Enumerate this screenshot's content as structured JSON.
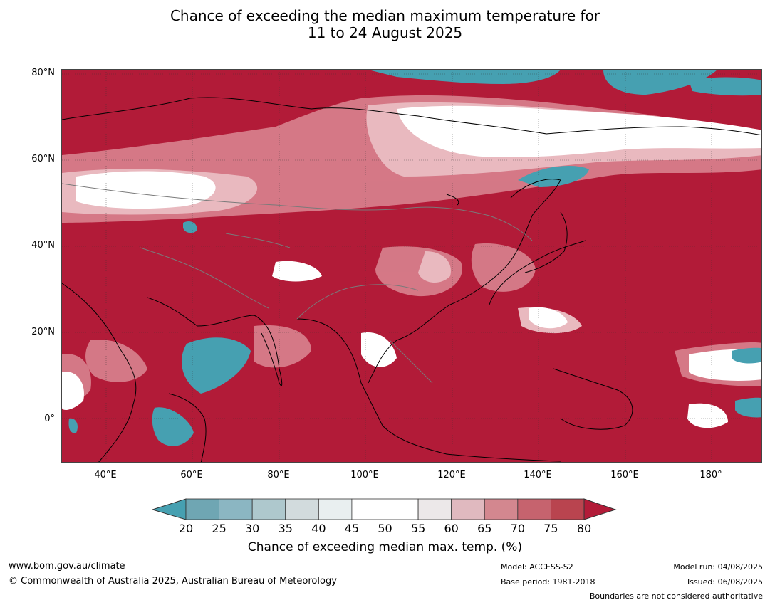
{
  "header": {
    "title_line1": "Chance of exceeding the median maximum temperature for",
    "title_line2": "11 to 24 August 2025"
  },
  "map": {
    "lat_labels": [
      "80°N",
      "60°N",
      "40°N",
      "20°N",
      "0°"
    ],
    "lon_labels": [
      "40°E",
      "60°E",
      "80°E",
      "100°E",
      "120°E",
      "140°E",
      "160°E",
      "180°"
    ],
    "colors": {
      "background_high": "#b21b38",
      "low": "#46a0b1",
      "near_median": "#ffffff",
      "mid_high": "#d8838f",
      "light_pink": "#e9b9bf",
      "coast": "#000000",
      "borders": "#7a7a7a"
    }
  },
  "colorbar": {
    "ticks": [
      "20",
      "25",
      "30",
      "35",
      "40",
      "45",
      "50",
      "55",
      "60",
      "65",
      "70",
      "75",
      "80"
    ],
    "colors": [
      "#6fa6b3",
      "#8bb6c2",
      "#aec8cd",
      "#d2dbdd",
      "#e9eff0",
      "#ffffff",
      "#ffffff",
      "#ece8e9",
      "#e0b9bf",
      "#d3878f",
      "#c6636e",
      "#b9444f"
    ],
    "low_extend_color": "#46a0b1",
    "high_extend_color": "#b21b38",
    "label": "Chance of exceeding median max. temp. (%)"
  },
  "footer": {
    "website": "www.bom.gov.au/climate",
    "copyright": "© Commonwealth of Australia 2025, Australian Bureau of Meteorology",
    "model": "Model: ACCESS-S2",
    "base_period": "Base period: 1981-2018",
    "model_run": "Model run: 04/08/2025",
    "issued": "Issued: 06/08/2025",
    "disclaimer": "Boundaries are not considered authoritative"
  }
}
